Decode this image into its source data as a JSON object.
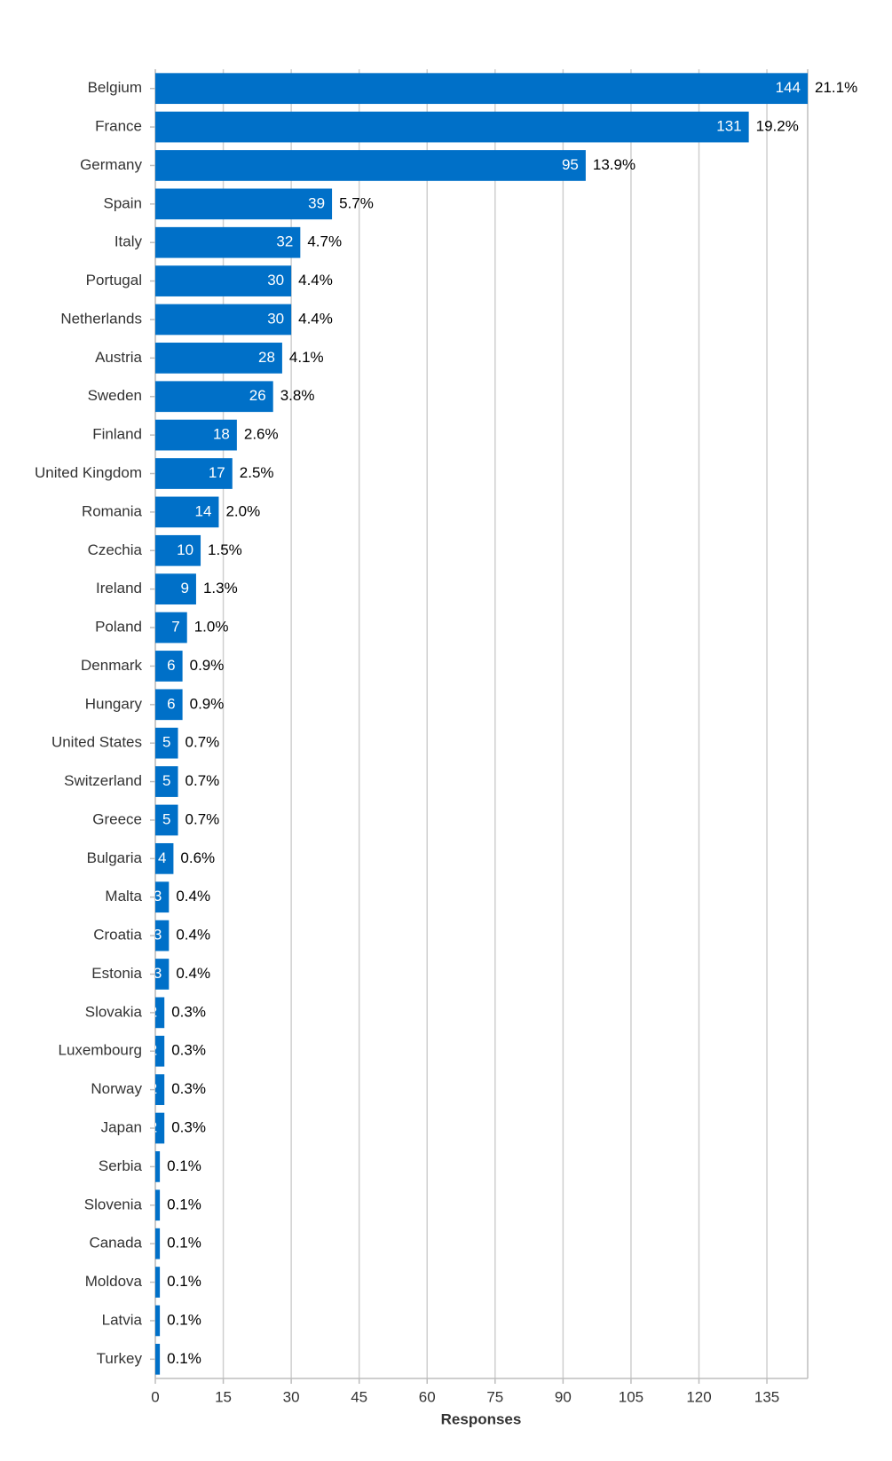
{
  "chart_data": {
    "type": "hbar",
    "categories": [
      "Belgium",
      "France",
      "Germany",
      "Spain",
      "Italy",
      "Portugal",
      "Netherlands",
      "Austria",
      "Sweden",
      "Finland",
      "United Kingdom",
      "Romania",
      "Czechia",
      "Ireland",
      "Poland",
      "Denmark",
      "Hungary",
      "United States",
      "Switzerland",
      "Greece",
      "Bulgaria",
      "Malta",
      "Croatia",
      "Estonia",
      "Slovakia",
      "Luxembourg",
      "Norway",
      "Japan",
      "Serbia",
      "Slovenia",
      "Canada",
      "Moldova",
      "Latvia",
      "Turkey"
    ],
    "values": [
      144,
      131,
      95,
      39,
      32,
      30,
      30,
      28,
      26,
      18,
      17,
      14,
      10,
      9,
      7,
      6,
      6,
      5,
      5,
      5,
      4,
      3,
      3,
      3,
      2,
      2,
      2,
      2,
      1,
      1,
      1,
      1,
      1,
      1
    ],
    "shares": [
      21.1,
      19.2,
      13.9,
      5.7,
      4.7,
      4.4,
      4.4,
      4.1,
      3.8,
      2.6,
      2.5,
      2.0,
      1.5,
      1.3,
      1.0,
      0.9,
      0.9,
      0.7,
      0.7,
      0.7,
      0.6,
      0.4,
      0.4,
      0.4,
      0.3,
      0.3,
      0.3,
      0.3,
      0.1,
      0.1,
      0.1,
      0.1,
      0.1,
      0.1
    ],
    "share_labels": [
      "21.1%",
      "19.2%",
      "13.9%",
      "5.7%",
      "4.7%",
      "4.4%",
      "4.4%",
      "4.1%",
      "3.8%",
      "2.6%",
      "2.5%",
      "2.0%",
      "1.5%",
      "1.3%",
      "1.0%",
      "0.9%",
      "0.9%",
      "0.7%",
      "0.7%",
      "0.7%",
      "0.6%",
      "0.4%",
      "0.4%",
      "0.4%",
      "0.3%",
      "0.3%",
      "0.3%",
      "0.3%",
      "0.1%",
      "0.1%",
      "0.1%",
      "0.1%",
      "0.1%",
      "0.1%"
    ],
    "color": "#0070c8",
    "xlim": [
      0,
      144
    ],
    "xticks": [
      0,
      15,
      30,
      45,
      60,
      75,
      90,
      105,
      120,
      135
    ],
    "xlabel": "Responses",
    "grid": true
  }
}
